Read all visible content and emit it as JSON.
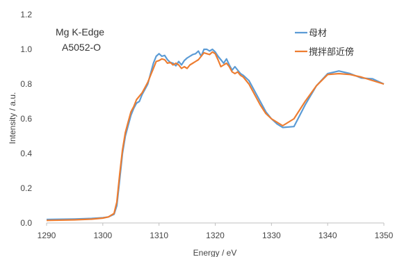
{
  "chart_data": {
    "type": "line",
    "xlabel": "Energy / eV",
    "ylabel": "Intensity / a.u.",
    "xlim": [
      1290,
      1350
    ],
    "ylim": [
      0,
      1.2
    ],
    "xticks": [
      1290,
      1300,
      1310,
      1320,
      1330,
      1340,
      1350
    ],
    "yticks": [
      0.0,
      0.2,
      0.4,
      0.6,
      0.8,
      1.0,
      1.2
    ],
    "xtick_labels": [
      "1290",
      "1300",
      "1310",
      "1320",
      "1330",
      "1340",
      "1350"
    ],
    "ytick_labels": [
      "0.0",
      "0.2",
      "0.4",
      "0.6",
      "0.8",
      "1.0",
      "1.2"
    ],
    "grid": false,
    "legend_position": "top-right",
    "annotations": [
      "Mg K-Edge",
      "A5052-O"
    ],
    "series": [
      {
        "name": "母材",
        "color": "#5b9bd5",
        "x": [
          1290,
          1295,
          1298,
          1300,
          1301,
          1302,
          1302.5,
          1303,
          1303.5,
          1304,
          1304.5,
          1305,
          1305.5,
          1306,
          1306.5,
          1307,
          1307.5,
          1308,
          1308.5,
          1309,
          1309.5,
          1310,
          1310.5,
          1311,
          1311.5,
          1312,
          1312.5,
          1313,
          1313.5,
          1314,
          1314.5,
          1315,
          1315.5,
          1316,
          1316.5,
          1317,
          1317.5,
          1318,
          1318.5,
          1319,
          1319.5,
          1320,
          1320.5,
          1321,
          1321.5,
          1322,
          1322.5,
          1323,
          1323.5,
          1324,
          1324.5,
          1325,
          1326,
          1327,
          1328,
          1329,
          1330,
          1331,
          1332,
          1334,
          1336,
          1338,
          1340,
          1342,
          1344,
          1346,
          1348,
          1350
        ],
        "values": [
          0.02,
          0.023,
          0.026,
          0.03,
          0.035,
          0.05,
          0.1,
          0.25,
          0.4,
          0.5,
          0.56,
          0.62,
          0.66,
          0.69,
          0.7,
          0.74,
          0.77,
          0.8,
          0.86,
          0.92,
          0.96,
          0.975,
          0.96,
          0.965,
          0.94,
          0.925,
          0.92,
          0.905,
          0.93,
          0.91,
          0.935,
          0.95,
          0.96,
          0.97,
          0.975,
          0.99,
          0.96,
          1.0,
          1.0,
          0.99,
          1.0,
          0.985,
          0.96,
          0.94,
          0.92,
          0.945,
          0.91,
          0.88,
          0.9,
          0.88,
          0.86,
          0.85,
          0.82,
          0.76,
          0.7,
          0.64,
          0.6,
          0.57,
          0.55,
          0.555,
          0.68,
          0.79,
          0.86,
          0.875,
          0.86,
          0.835,
          0.83,
          0.8
        ]
      },
      {
        "name": "撹拌部近傍",
        "color": "#ed7d31",
        "x": [
          1290,
          1295,
          1298,
          1300,
          1301,
          1302,
          1302.5,
          1303,
          1303.5,
          1304,
          1304.5,
          1305,
          1305.5,
          1306,
          1306.5,
          1307,
          1307.5,
          1308,
          1308.5,
          1309,
          1309.5,
          1310,
          1310.5,
          1311,
          1311.5,
          1312,
          1312.5,
          1313,
          1313.5,
          1314,
          1314.5,
          1315,
          1315.5,
          1316,
          1316.5,
          1317,
          1317.5,
          1318,
          1318.5,
          1319,
          1319.5,
          1320,
          1320.5,
          1321,
          1321.5,
          1322,
          1322.5,
          1323,
          1323.5,
          1324,
          1324.5,
          1325,
          1326,
          1327,
          1328,
          1329,
          1330,
          1331,
          1332,
          1334,
          1336,
          1338,
          1340,
          1342,
          1344,
          1346,
          1348,
          1350
        ],
        "values": [
          0.015,
          0.018,
          0.022,
          0.028,
          0.035,
          0.055,
          0.12,
          0.28,
          0.42,
          0.52,
          0.58,
          0.64,
          0.67,
          0.71,
          0.73,
          0.75,
          0.78,
          0.81,
          0.85,
          0.89,
          0.93,
          0.935,
          0.945,
          0.94,
          0.92,
          0.925,
          0.91,
          0.92,
          0.91,
          0.89,
          0.9,
          0.89,
          0.91,
          0.92,
          0.93,
          0.94,
          0.96,
          0.98,
          0.975,
          0.97,
          0.985,
          0.975,
          0.94,
          0.9,
          0.91,
          0.92,
          0.9,
          0.87,
          0.86,
          0.87,
          0.85,
          0.84,
          0.8,
          0.74,
          0.68,
          0.63,
          0.6,
          0.58,
          0.56,
          0.6,
          0.7,
          0.79,
          0.855,
          0.86,
          0.855,
          0.84,
          0.82,
          0.8
        ]
      }
    ]
  }
}
